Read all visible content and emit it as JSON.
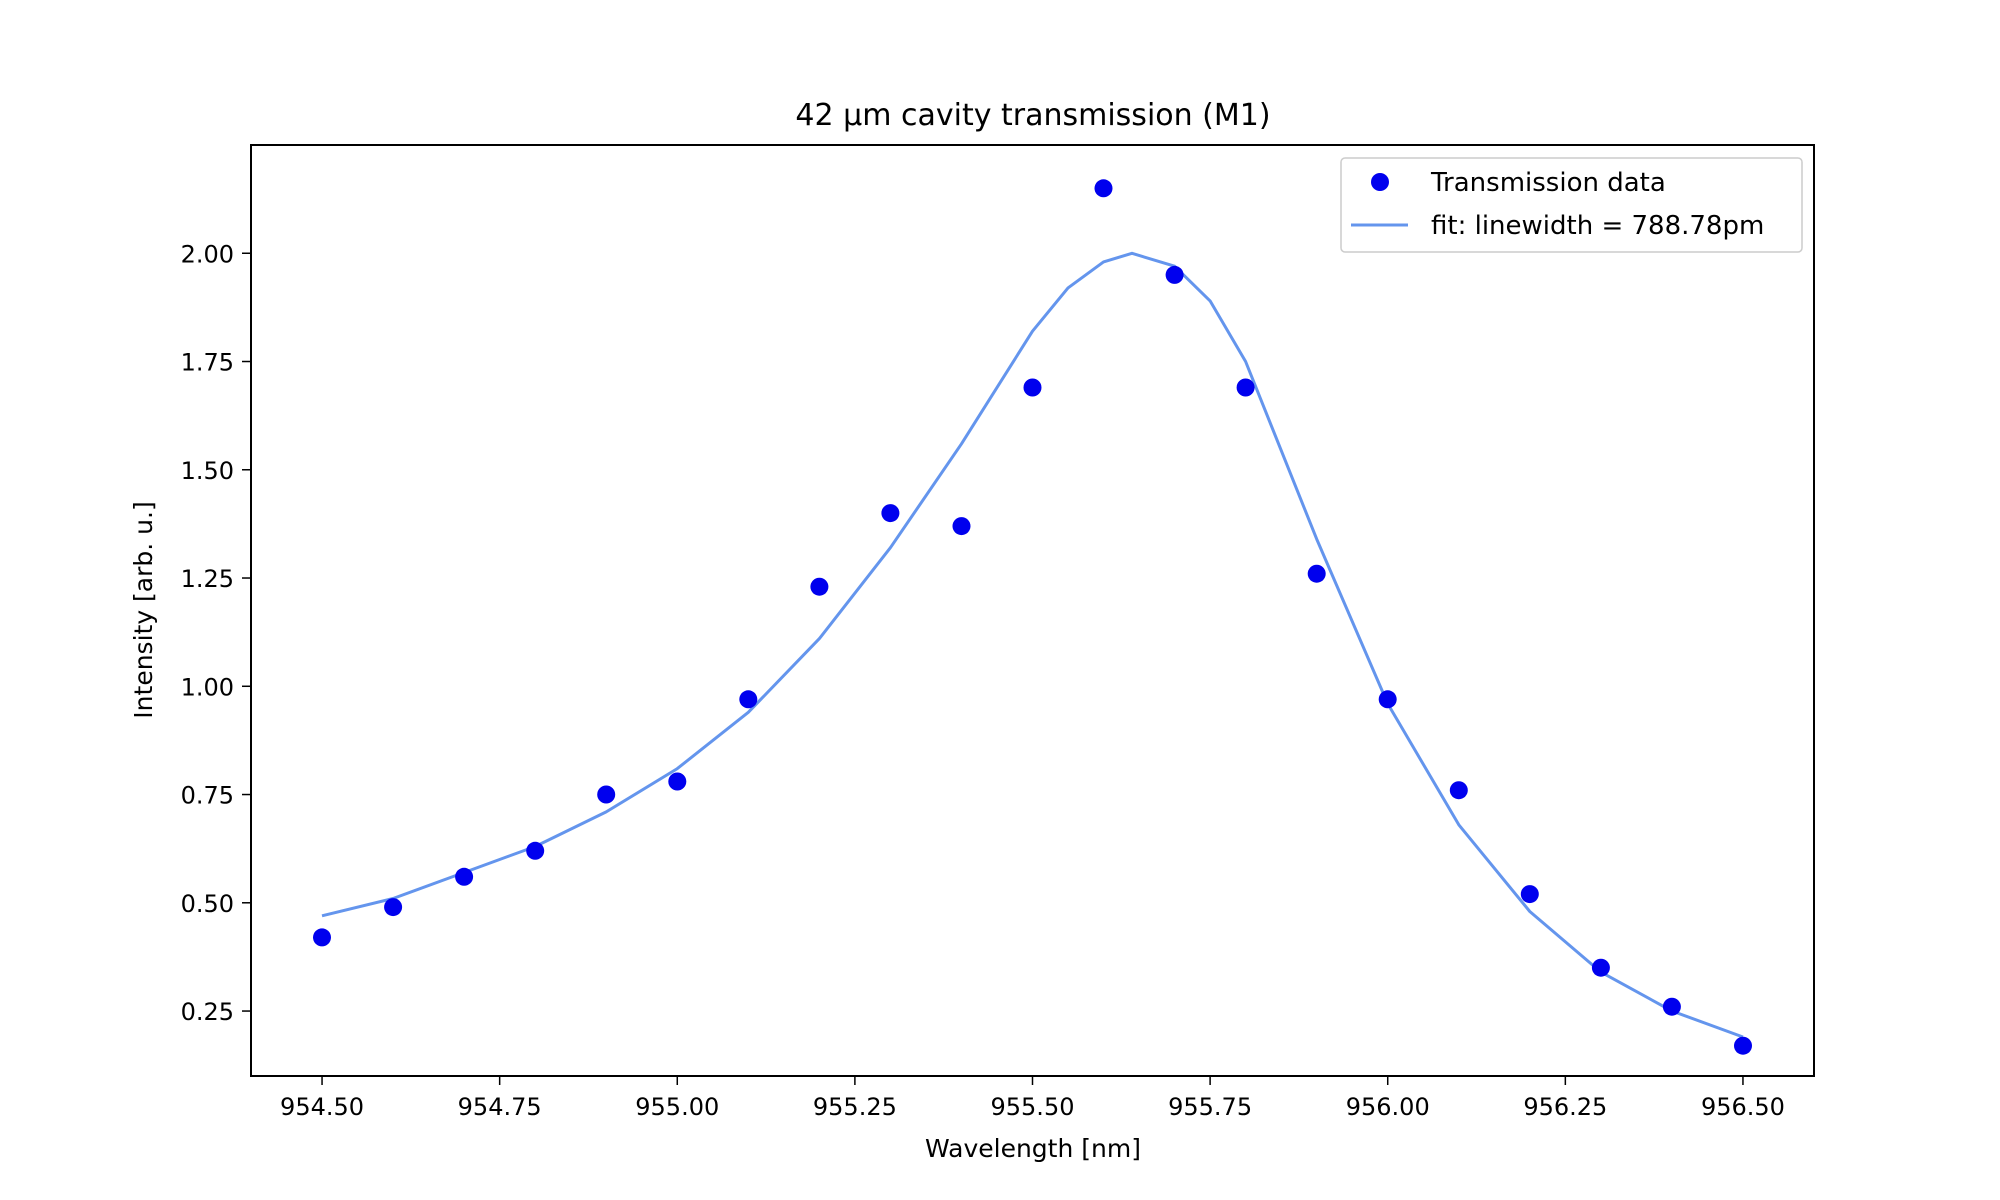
{
  "chart_data": {
    "type": "scatter",
    "title": "42 µm cavity transmission (M1)",
    "xlabel": "Wavelength [nm]",
    "ylabel": "Intensity [arb. u.]",
    "xlim": [
      954.4,
      956.6
    ],
    "ylim": [
      0.1,
      2.25
    ],
    "x_ticks": [
      954.5,
      954.75,
      955.0,
      955.25,
      955.5,
      955.75,
      956.0,
      956.25,
      956.5
    ],
    "x_tick_labels": [
      "954.50",
      "954.75",
      "955.00",
      "955.25",
      "955.50",
      "955.75",
      "956.00",
      "956.25",
      "956.50"
    ],
    "y_ticks": [
      0.25,
      0.5,
      0.75,
      1.0,
      1.25,
      1.5,
      1.75,
      2.0
    ],
    "y_tick_labels": [
      "0.25",
      "0.50",
      "0.75",
      "1.00",
      "1.25",
      "1.50",
      "1.75",
      "2.00"
    ],
    "grid": false,
    "legend_position": "top-right",
    "series": [
      {
        "name": "Transmission data",
        "kind": "scatter",
        "color": "#0000ee",
        "x": [
          954.5,
          954.6,
          954.7,
          954.8,
          954.9,
          955.0,
          955.1,
          955.2,
          955.3,
          955.4,
          955.5,
          955.6,
          955.7,
          955.8,
          955.9,
          956.0,
          956.1,
          956.2,
          956.3,
          956.4,
          956.5
        ],
        "y": [
          0.42,
          0.49,
          0.56,
          0.62,
          0.75,
          0.78,
          0.97,
          1.23,
          1.4,
          1.37,
          1.69,
          2.15,
          1.95,
          1.69,
          1.26,
          0.97,
          0.76,
          0.52,
          0.35,
          0.26,
          0.17
        ]
      },
      {
        "name": "fit: linewidth = 788.78pm",
        "kind": "line",
        "color": "#6495ed",
        "x": [
          954.5,
          954.6,
          954.7,
          954.8,
          954.9,
          955.0,
          955.1,
          955.2,
          955.3,
          955.4,
          955.5,
          955.55,
          955.6,
          955.64,
          955.7,
          955.75,
          955.8,
          955.9,
          956.0,
          956.1,
          956.2,
          956.3,
          956.4,
          956.5
        ],
        "y": [
          0.47,
          0.51,
          0.57,
          0.63,
          0.71,
          0.81,
          0.94,
          1.11,
          1.32,
          1.56,
          1.82,
          1.92,
          1.98,
          2.0,
          1.97,
          1.89,
          1.75,
          1.34,
          0.96,
          0.68,
          0.48,
          0.34,
          0.25,
          0.19
        ]
      }
    ]
  }
}
